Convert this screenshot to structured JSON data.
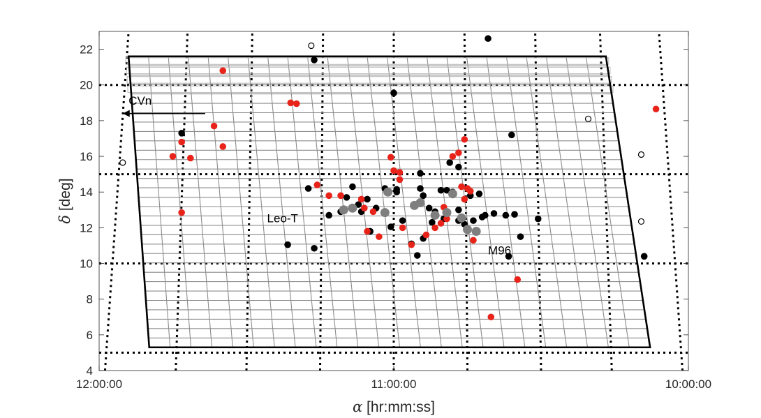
{
  "chart_data": {
    "type": "scatter",
    "title": "",
    "xlabel": {
      "symbol": "α",
      "text": " [hr:mm:ss]"
    },
    "ylabel": {
      "symbol": "δ",
      "text": " [deg]"
    },
    "xlim_hours": [
      12.0,
      10.0
    ],
    "ylim": [
      4,
      23
    ],
    "x_ticks": [
      {
        "hours": 12.0,
        "label": "12:00:00"
      },
      {
        "hours": 11.0,
        "label": "11:00:00"
      },
      {
        "hours": 10.0,
        "label": "10:00:00"
      }
    ],
    "y_ticks": [
      4,
      6,
      8,
      10,
      12,
      14,
      16,
      18,
      20,
      22
    ],
    "y_tick_labels": [
      "4",
      "6",
      "8",
      "10",
      "12",
      "14",
      "16",
      "18",
      "20",
      "22"
    ],
    "grid": {
      "dec_lines": [
        5,
        10,
        15,
        20
      ],
      "ra_lines": [
        [
          12.19,
          4.0,
          12.04,
          23.0
        ],
        [
          11.98,
          4.0,
          11.9,
          23.0
        ],
        [
          11.74,
          4.0,
          11.7,
          23.0
        ],
        [
          11.5,
          4.0,
          11.48,
          23.0
        ],
        [
          11.25,
          4.0,
          11.24,
          23.0
        ],
        [
          11.0,
          4.0,
          11.0,
          23.0
        ],
        [
          10.75,
          4.0,
          10.76,
          23.0
        ],
        [
          10.5,
          4.0,
          10.52,
          23.0
        ],
        [
          10.26,
          4.0,
          10.3,
          23.0
        ],
        [
          10.02,
          4.0,
          10.1,
          23.0
        ],
        [
          9.81,
          4.0,
          9.96,
          23.0
        ]
      ]
    },
    "footprint": {
      "corners": [
        [
          11.9,
          21.6
        ],
        [
          10.28,
          21.6
        ],
        [
          10.13,
          5.3
        ],
        [
          11.83,
          5.3
        ]
      ],
      "rows": 31,
      "cols": 24
    },
    "series": [
      {
        "color": "#000000",
        "marker": "filled",
        "points": [
          [
            11.72,
            17.3
          ],
          [
            11.29,
            14.2
          ],
          [
            11.14,
            14.3
          ],
          [
            11.16,
            13.7
          ],
          [
            11.12,
            13.3
          ],
          [
            11.18,
            12.9
          ],
          [
            11.22,
            12.7
          ],
          [
            11.09,
            13.6
          ],
          [
            11.11,
            12.9
          ],
          [
            11.06,
            13.1
          ],
          [
            11.36,
            11.05
          ],
          [
            11.27,
            10.85
          ],
          [
            11.27,
            21.4
          ],
          [
            11.0,
            19.55
          ],
          [
            10.68,
            22.6
          ],
          [
            10.6,
            17.2
          ],
          [
            10.78,
            15.4
          ],
          [
            10.91,
            15.05
          ],
          [
            10.81,
            15.65
          ],
          [
            10.91,
            14.2
          ],
          [
            11.03,
            14.2
          ],
          [
            10.99,
            14.15
          ],
          [
            10.99,
            14.0
          ],
          [
            10.9,
            13.8
          ],
          [
            10.88,
            13.1
          ],
          [
            10.84,
            14.1
          ],
          [
            10.82,
            14.1
          ],
          [
            10.8,
            14.0
          ],
          [
            10.74,
            13.8
          ],
          [
            10.71,
            13.9
          ],
          [
            10.86,
            12.9
          ],
          [
            10.83,
            12.5
          ],
          [
            10.78,
            12.4
          ],
          [
            10.76,
            12.2
          ],
          [
            10.73,
            12.4
          ],
          [
            10.7,
            12.6
          ],
          [
            10.69,
            12.7
          ],
          [
            10.66,
            12.8
          ],
          [
            10.62,
            12.7
          ],
          [
            10.78,
            13.0
          ],
          [
            10.87,
            12.3
          ],
          [
            10.9,
            11.4
          ],
          [
            10.94,
            11.1
          ],
          [
            10.97,
            12.4
          ],
          [
            11.01,
            12.05
          ],
          [
            11.08,
            11.8
          ],
          [
            10.92,
            10.45
          ],
          [
            10.61,
            10.4
          ],
          [
            10.57,
            11.5
          ],
          [
            10.51,
            12.5
          ],
          [
            10.59,
            12.75
          ],
          [
            10.15,
            10.4
          ]
        ]
      },
      {
        "color": "#e8231a",
        "marker": "filled",
        "points": [
          [
            11.58,
            20.8
          ],
          [
            11.35,
            19.0
          ],
          [
            11.33,
            18.95
          ],
          [
            10.11,
            18.65
          ],
          [
            11.61,
            17.7
          ],
          [
            11.58,
            16.55
          ],
          [
            11.72,
            16.8
          ],
          [
            11.75,
            16.0
          ],
          [
            11.69,
            15.9
          ],
          [
            11.72,
            12.85
          ],
          [
            11.26,
            14.4
          ],
          [
            11.22,
            13.8
          ],
          [
            11.18,
            13.8
          ],
          [
            11.11,
            13.6
          ],
          [
            11.1,
            13.1
          ],
          [
            11.07,
            12.9
          ],
          [
            11.01,
            15.95
          ],
          [
            11.0,
            15.2
          ],
          [
            10.98,
            15.1
          ],
          [
            10.98,
            14.7
          ],
          [
            10.8,
            16.0
          ],
          [
            10.78,
            16.2
          ],
          [
            10.76,
            16.95
          ],
          [
            10.77,
            14.3
          ],
          [
            10.75,
            14.2
          ],
          [
            10.74,
            14.05
          ],
          [
            10.76,
            13.6
          ],
          [
            10.83,
            13.15
          ],
          [
            10.82,
            12.5
          ],
          [
            10.84,
            12.25
          ],
          [
            10.86,
            12.0
          ],
          [
            10.89,
            11.6
          ],
          [
            10.94,
            11.05
          ],
          [
            11.09,
            11.8
          ],
          [
            11.05,
            11.5
          ],
          [
            10.97,
            12.0
          ],
          [
            10.73,
            11.3
          ],
          [
            10.58,
            9.1
          ],
          [
            10.67,
            7.0
          ]
        ]
      },
      {
        "color": "#7f7f7f",
        "marker": "filled-large",
        "points": [
          [
            11.17,
            13.0
          ],
          [
            11.14,
            13.1
          ],
          [
            11.03,
            12.85
          ],
          [
            10.91,
            13.4
          ],
          [
            10.8,
            13.9
          ],
          [
            10.77,
            12.55
          ],
          [
            10.86,
            12.7
          ],
          [
            10.75,
            11.9
          ],
          [
            10.72,
            11.8
          ],
          [
            11.02,
            14.0
          ],
          [
            10.93,
            13.25
          ],
          [
            10.82,
            12.85
          ]
        ]
      },
      {
        "color": "#000000",
        "marker": "open",
        "points": [
          [
            11.28,
            22.2
          ],
          [
            10.34,
            18.1
          ],
          [
            10.16,
            16.1
          ],
          [
            10.16,
            12.35
          ],
          [
            11.92,
            15.65
          ]
        ]
      }
    ],
    "annotations": [
      {
        "text": "CVn",
        "x_hours": 11.9,
        "y": 18.9,
        "arrow": {
          "from": [
            11.64,
            18.4
          ],
          "to": [
            11.92,
            18.4
          ]
        }
      },
      {
        "text": "Leo-T",
        "x_hours": 11.43,
        "y": 12.3
      },
      {
        "text": "M96",
        "x_hours": 10.68,
        "y": 10.5
      }
    ]
  }
}
